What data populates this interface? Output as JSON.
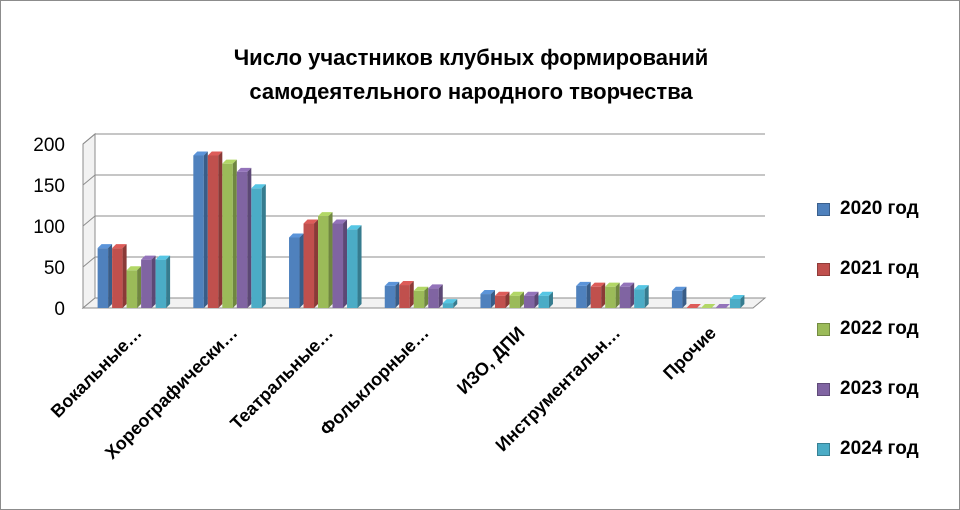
{
  "chart_data": {
    "type": "bar",
    "title_line1": "Число участников клубных формирований",
    "title_line2": "самодеятельного народного творчества",
    "categories": [
      "Вокальные…",
      "Хореографически…",
      "Театральные…",
      "Фольклорные…",
      "ИЗО, ДПИ",
      "Инструментальн…",
      "Прочие"
    ],
    "series": [
      {
        "name": "2020 год",
        "color": "#4f81bd",
        "values": [
          73,
          186,
          86,
          27,
          17,
          27,
          21
        ]
      },
      {
        "name": "2021 год",
        "color": "#c0504d",
        "values": [
          73,
          186,
          103,
          28,
          15,
          26,
          0
        ]
      },
      {
        "name": "2022 год",
        "color": "#9bbb59",
        "values": [
          46,
          176,
          112,
          21,
          15,
          26,
          0
        ]
      },
      {
        "name": "2023 год",
        "color": "#8064a2",
        "values": [
          59,
          166,
          103,
          24,
          15,
          26,
          0
        ]
      },
      {
        "name": "2024 год",
        "color": "#4bacc6",
        "values": [
          59,
          146,
          96,
          6,
          15,
          23,
          11
        ]
      }
    ],
    "yticks": [
      "0",
      "50",
      "100",
      "150",
      "200"
    ],
    "ylim": [
      0,
      200
    ],
    "grid": true,
    "legend_position": "right"
  }
}
